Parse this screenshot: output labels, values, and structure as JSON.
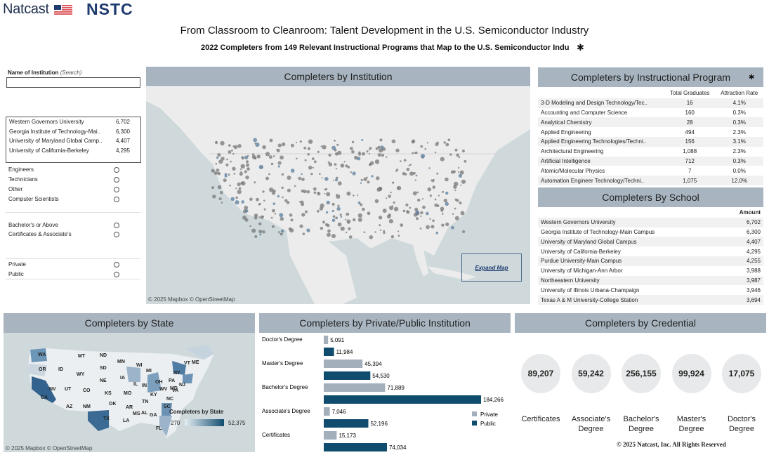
{
  "header": {
    "brand_natcast": "Natcast",
    "brand_nstc": "NSTC",
    "title": "From Classroom to Cleanroom: Talent Development in the U.S. Semiconductor Industry",
    "subtitle": "2022 Completers from 149 Relevant Instructional Programs that Map to the U.S. Semiconductor Indu",
    "subtitle_star": "✱"
  },
  "filters": {
    "name_label": "Name of Institution",
    "search_hint": "(Search)",
    "search_value": "",
    "institutions": [
      {
        "name": "Western Governors University",
        "value": "6,702"
      },
      {
        "name": "Georgia Institute of Technology-Mai..",
        "value": "6,300"
      },
      {
        "name": "University of Maryland Global Camp..",
        "value": "4,407"
      },
      {
        "name": "University of California-Berkeley",
        "value": "4,295"
      }
    ],
    "occupation_options": [
      "Engineers",
      "Technicians",
      "Other",
      "Computer Scientists"
    ],
    "degree_options": [
      "Bachelor's or Above",
      "Certificates & Associate's"
    ],
    "control_options": [
      "Private",
      "Public"
    ]
  },
  "map_institution": {
    "title": "Completers by Institution",
    "attribution": "© 2025 Mapbox  © OpenStreetMap",
    "expand_label": "Expand Map"
  },
  "program_panel": {
    "title": "Completers by Instructional Program",
    "title_star": "✱",
    "col_total": "Total Graduates",
    "col_rate": "Attraction Rate",
    "rows": [
      {
        "name": "3-D Modeling and Design Technology/Tec..",
        "total": "16",
        "rate": "4.1%"
      },
      {
        "name": "Accounting and Computer Science",
        "total": "160",
        "rate": "0.3%"
      },
      {
        "name": "Analytical Chemistry",
        "total": "28",
        "rate": "0.3%"
      },
      {
        "name": "Applied Engineering",
        "total": "494",
        "rate": "2.3%"
      },
      {
        "name": "Applied Engineering Technologies/Techni..",
        "total": "156",
        "rate": "3.1%"
      },
      {
        "name": "Architectural Engineering",
        "total": "1,088",
        "rate": "2.3%"
      },
      {
        "name": "Artificial Intelligence",
        "total": "712",
        "rate": "0.3%"
      },
      {
        "name": "Atomic/Molecular Physics",
        "total": "7",
        "rate": "0.0%"
      },
      {
        "name": "Automation Engineer Technology/Techni..",
        "total": "1,075",
        "rate": "12.0%"
      }
    ]
  },
  "school_panel": {
    "title": "Completers By School",
    "col_amount": "Amount",
    "rows": [
      {
        "name": "Western Governors University",
        "amount": "6,702"
      },
      {
        "name": "Georgia Institute of Technology-Main Campus",
        "amount": "6,300"
      },
      {
        "name": "University of Maryland Global Campus",
        "amount": "4,407"
      },
      {
        "name": "University of California-Berkeley",
        "amount": "4,295"
      },
      {
        "name": "Purdue University-Main Campus",
        "amount": "4,255"
      },
      {
        "name": "University of Michigan-Ann Arbor",
        "amount": "3,988"
      },
      {
        "name": "Northeastern University",
        "amount": "3,987"
      },
      {
        "name": "University of Illinois Urbana-Champaign",
        "amount": "3,946"
      },
      {
        "name": "Texas A & M University-College Station",
        "amount": "3,694"
      }
    ]
  },
  "state_panel": {
    "title": "Completers by State",
    "legend_title": "Completers by State",
    "legend_min": "270",
    "legend_max": "52,375",
    "attribution": "© 2025 Mapbox  © OpenStreetMap",
    "state_labels": [
      "WA",
      "OR",
      "ID",
      "MT",
      "ND",
      "SD",
      "WY",
      "NE",
      "NV",
      "UT",
      "CO",
      "KS",
      "CA",
      "AZ",
      "NM",
      "OK",
      "TX",
      "MN",
      "IA",
      "MO",
      "AR",
      "LA",
      "WI",
      "IL",
      "MI",
      "IN",
      "OH",
      "KY",
      "TN",
      "MS",
      "AL",
      "GA",
      "FL",
      "SC",
      "NC",
      "VA",
      "WV",
      "PA",
      "NY",
      "VT",
      "ME",
      "NJ",
      "MD"
    ]
  },
  "private_public_panel": {
    "title": "Completers by Private/Public Institution",
    "legend": [
      {
        "name": "Private",
        "color": "#a3afbb"
      },
      {
        "name": "Public",
        "color": "#0f4c6e"
      }
    ]
  },
  "chart_data": {
    "type": "bar",
    "orientation": "horizontal",
    "categories": [
      "Doctor's Degree",
      "Master's Degree",
      "Bachelor's Degree",
      "Associate's Degree",
      "Certificates"
    ],
    "series": [
      {
        "name": "Private",
        "values": [
          5091,
          45394,
          71889,
          7046,
          15173
        ],
        "labels": [
          "5,091",
          "45,394",
          "71,889",
          "7,046",
          "15,173"
        ]
      },
      {
        "name": "Public",
        "values": [
          11984,
          54530,
          184266,
          52196,
          74034
        ],
        "labels": [
          "11,984",
          "54,530",
          "184,266",
          "52,196",
          "74,034"
        ]
      }
    ],
    "xlim": [
      0,
      184266
    ]
  },
  "credential_panel": {
    "title": "Completers by Credential",
    "items": [
      {
        "value": "89,207",
        "line1": "Certificates",
        "line2": ""
      },
      {
        "value": "59,242",
        "line1": "Associate's",
        "line2": "Degree"
      },
      {
        "value": "256,155",
        "line1": "Bachelor's",
        "line2": "Degree"
      },
      {
        "value": "99,924",
        "line1": "Master's",
        "line2": "Degree"
      },
      {
        "value": "17,075",
        "line1": "Doctor's",
        "line2": "Degree"
      }
    ]
  },
  "footer": {
    "copyright": "© 2025 Natcast, Inc. All Rights Reserved"
  }
}
